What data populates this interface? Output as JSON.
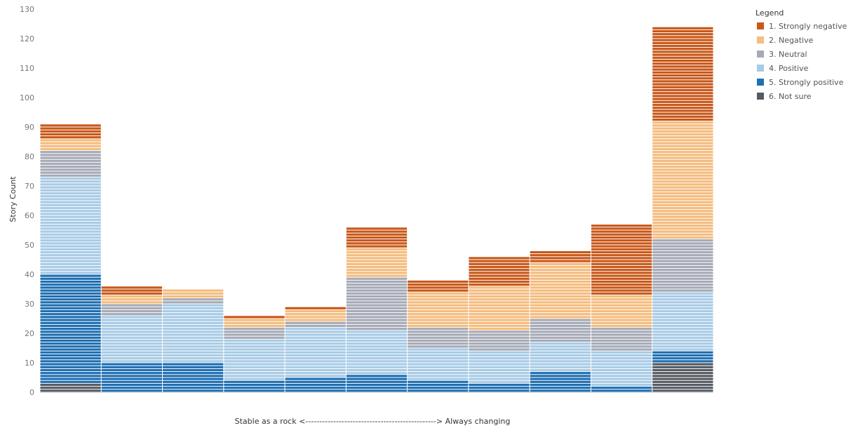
{
  "chart_data": {
    "type": "bar",
    "stacked": true,
    "xlabel": "Stable as a rock <-----------------------------------------------> Always changing",
    "ylabel": "Story Count",
    "ylim": [
      0,
      130
    ],
    "yticks": [
      0,
      10,
      20,
      30,
      40,
      50,
      60,
      70,
      80,
      90,
      100,
      110,
      120,
      130
    ],
    "grid": false,
    "legend_title": "Legend",
    "legend_position": "top-right",
    "bin_count": 11,
    "series": [
      {
        "name": "6. Not sure",
        "color": "#555b63",
        "values": [
          3,
          0,
          0,
          0,
          0,
          0,
          0,
          0,
          0,
          0,
          10
        ]
      },
      {
        "name": "5. Strongly positive",
        "color": "#1f6fb2",
        "values": [
          37,
          10,
          10,
          4,
          5,
          6,
          4,
          3,
          7,
          2,
          4
        ]
      },
      {
        "name": "4. Positive",
        "color": "#a8cbe6",
        "values": [
          33,
          16,
          20,
          14,
          17,
          15,
          11,
          11,
          10,
          12,
          20
        ]
      },
      {
        "name": "3. Neutral",
        "color": "#a5aab6",
        "values": [
          9,
          4,
          2,
          4,
          2,
          18,
          7,
          7,
          8,
          8,
          18
        ]
      },
      {
        "name": "2. Negative",
        "color": "#f5bc7e",
        "values": [
          4,
          3,
          3,
          3,
          4,
          10,
          12,
          15,
          19,
          11,
          40
        ]
      },
      {
        "name": "1. Strongly negative",
        "color": "#c8581a",
        "values": [
          5,
          3,
          0,
          1,
          1,
          7,
          4,
          10,
          4,
          24,
          32
        ]
      }
    ],
    "legend_order": [
      "1. Strongly negative",
      "2. Negative",
      "3. Neutral",
      "4. Positive",
      "5. Strongly positive",
      "6. Not sure"
    ]
  }
}
